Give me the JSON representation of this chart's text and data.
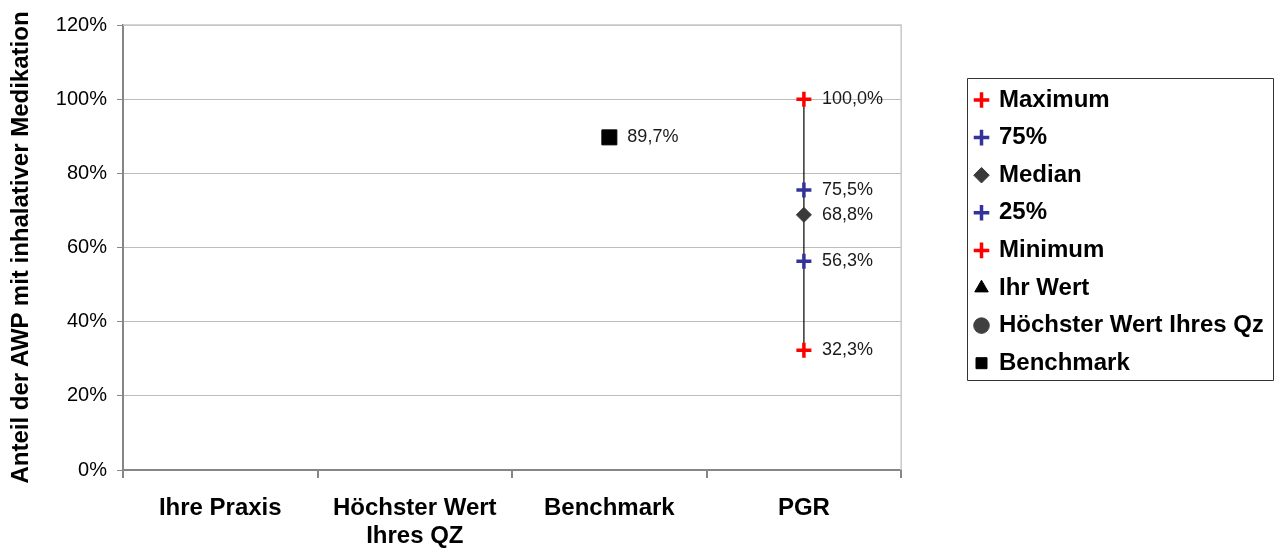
{
  "chart_data": {
    "type": "scatter",
    "ylabel": "Anteil der AWP mit inhalativer Medikation",
    "categories": [
      "Ihre Praxis",
      "Höchster Wert Ihres QZ",
      "Benchmark",
      "PGR"
    ],
    "ylim": [
      0,
      120
    ],
    "yticks": [
      {
        "value": 0,
        "label": "0%"
      },
      {
        "value": 20,
        "label": "20%"
      },
      {
        "value": 40,
        "label": "40%"
      },
      {
        "value": 60,
        "label": "60%"
      },
      {
        "value": 80,
        "label": "80%"
      },
      {
        "value": 100,
        "label": "100%"
      },
      {
        "value": 120,
        "label": "120%"
      }
    ],
    "grid": "y",
    "legend": "right",
    "series": [
      {
        "name": "Maximum",
        "color": "#ff0000",
        "marker": "cross",
        "values": [
          null,
          null,
          null,
          100.0
        ],
        "value_labels": [
          null,
          null,
          null,
          "100,0%"
        ]
      },
      {
        "name": "75%",
        "color": "#333399",
        "marker": "cross",
        "values": [
          null,
          null,
          null,
          75.5
        ],
        "value_labels": [
          null,
          null,
          null,
          "75,5%"
        ]
      },
      {
        "name": "Median",
        "color": "#3a3a3a",
        "marker": "diamond",
        "values": [
          null,
          null,
          null,
          68.8
        ],
        "value_labels": [
          null,
          null,
          null,
          "68,8%"
        ]
      },
      {
        "name": "25%",
        "color": "#333399",
        "marker": "cross",
        "values": [
          null,
          null,
          null,
          56.3
        ],
        "value_labels": [
          null,
          null,
          null,
          "56,3%"
        ]
      },
      {
        "name": "Minimum",
        "color": "#ff0000",
        "marker": "cross",
        "values": [
          null,
          null,
          null,
          32.3
        ],
        "value_labels": [
          null,
          null,
          null,
          "32,3%"
        ]
      },
      {
        "name": "Ihr Wert",
        "color": "#000000",
        "marker": "triangle",
        "values": [
          null,
          null,
          null,
          null
        ]
      },
      {
        "name": "Höchster Wert Ihres Qz",
        "color": "#404040",
        "marker": "circle",
        "values": [
          null,
          null,
          null,
          null
        ]
      },
      {
        "name": "Benchmark",
        "color": "#000000",
        "marker": "square",
        "values": [
          null,
          null,
          89.7,
          null
        ],
        "value_labels": [
          null,
          null,
          "89,7%",
          null
        ]
      },
      {
        "type": "line",
        "x": [
          "PGR",
          "PGR"
        ],
        "values": [
          32.3,
          100.0
        ],
        "color": "#000000",
        "marker": "none"
      }
    ]
  }
}
